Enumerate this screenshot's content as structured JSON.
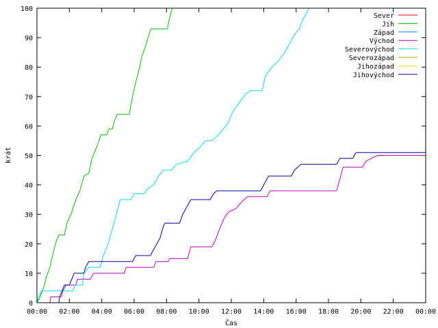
{
  "chart_data": {
    "type": "line",
    "title": "",
    "xlabel": "Čas",
    "ylabel": "krát",
    "xlim": [
      0,
      24
    ],
    "ylim": [
      0,
      100
    ],
    "x_ticks": [
      0,
      2,
      4,
      6,
      8,
      10,
      12,
      14,
      16,
      18,
      20,
      22,
      24
    ],
    "x_tick_labels": [
      "00:00",
      "02:00",
      "04:00",
      "06:00",
      "08:00",
      "10:00",
      "12:00",
      "14:00",
      "16:00",
      "18:00",
      "20:00",
      "22:00",
      "00:00"
    ],
    "y_ticks": [
      0,
      10,
      20,
      30,
      40,
      50,
      60,
      70,
      80,
      90,
      100
    ],
    "y_tick_labels": [
      "0",
      "10",
      "20",
      "30",
      "40",
      "50",
      "60",
      "70",
      "80",
      "90",
      "100"
    ],
    "grid": false,
    "legend_position": "top-right",
    "series": [
      {
        "name": "Sever",
        "color": "#ff0000",
        "points": []
      },
      {
        "name": "Jih",
        "color": "#00c000",
        "points": [
          [
            0,
            0
          ],
          [
            0.2,
            2
          ],
          [
            0.4,
            5
          ],
          [
            0.6,
            9
          ],
          [
            0.8,
            12
          ],
          [
            1,
            17
          ],
          [
            1.2,
            21
          ],
          [
            1.35,
            23
          ],
          [
            1.7,
            23
          ],
          [
            1.85,
            27
          ],
          [
            2.1,
            30
          ],
          [
            2.4,
            35
          ],
          [
            2.65,
            38
          ],
          [
            2.9,
            43
          ],
          [
            3.2,
            44
          ],
          [
            3.4,
            49
          ],
          [
            3.7,
            53
          ],
          [
            3.95,
            57
          ],
          [
            4.3,
            57
          ],
          [
            4.45,
            59
          ],
          [
            4.65,
            59
          ],
          [
            4.8,
            62
          ],
          [
            4.95,
            64
          ],
          [
            5.7,
            64
          ],
          [
            5.9,
            70
          ],
          [
            6.1,
            75
          ],
          [
            6.3,
            79
          ],
          [
            6.5,
            84
          ],
          [
            6.7,
            87
          ],
          [
            6.9,
            91
          ],
          [
            7.05,
            93
          ],
          [
            8.05,
            93
          ],
          [
            8.2,
            97
          ],
          [
            8.35,
            100
          ]
        ]
      },
      {
        "name": "Západ",
        "color": "#0080ff",
        "points": []
      },
      {
        "name": "Východ",
        "color": "#c000c0",
        "points": [
          [
            0.8,
            0
          ],
          [
            0.85,
            2
          ],
          [
            1.5,
            2
          ],
          [
            1.6,
            4
          ],
          [
            1.8,
            6
          ],
          [
            2.4,
            6
          ],
          [
            2.5,
            8
          ],
          [
            3.3,
            8
          ],
          [
            3.5,
            10
          ],
          [
            5.4,
            10
          ],
          [
            5.5,
            12
          ],
          [
            7.2,
            12
          ],
          [
            7.35,
            14
          ],
          [
            8.1,
            14
          ],
          [
            8.2,
            15
          ],
          [
            9.3,
            15
          ],
          [
            9.5,
            19
          ],
          [
            10.8,
            19
          ],
          [
            11,
            21
          ],
          [
            11.2,
            24
          ],
          [
            11.5,
            28
          ],
          [
            11.7,
            30
          ],
          [
            11.9,
            31
          ],
          [
            12.3,
            32
          ],
          [
            12.6,
            34
          ],
          [
            13,
            36
          ],
          [
            14.2,
            36
          ],
          [
            14.4,
            38
          ],
          [
            18.5,
            38
          ],
          [
            18.7,
            42
          ],
          [
            18.9,
            46
          ],
          [
            20.1,
            46
          ],
          [
            20.3,
            48
          ],
          [
            21,
            50
          ],
          [
            24,
            50
          ]
        ]
      },
      {
        "name": "Severovýchod",
        "color": "#00e0e0",
        "points": [
          [
            0,
            0
          ],
          [
            0.1,
            2
          ],
          [
            0.3,
            4
          ],
          [
            2.2,
            4
          ],
          [
            2.35,
            6
          ],
          [
            2.8,
            6
          ],
          [
            2.9,
            10
          ],
          [
            3.2,
            12
          ],
          [
            3.9,
            12
          ],
          [
            4.1,
            16
          ],
          [
            4.4,
            20
          ],
          [
            4.6,
            24
          ],
          [
            4.8,
            28
          ],
          [
            5,
            32
          ],
          [
            5.15,
            35
          ],
          [
            5.8,
            35
          ],
          [
            6,
            37
          ],
          [
            6.6,
            37
          ],
          [
            6.9,
            39
          ],
          [
            7.2,
            40
          ],
          [
            7.5,
            43
          ],
          [
            7.8,
            45
          ],
          [
            8.3,
            45
          ],
          [
            8.6,
            47
          ],
          [
            9.3,
            48
          ],
          [
            9.7,
            51
          ],
          [
            10.1,
            53
          ],
          [
            10.4,
            55
          ],
          [
            10.8,
            55
          ],
          [
            11.2,
            57
          ],
          [
            11.5,
            59
          ],
          [
            11.8,
            61
          ],
          [
            12.1,
            65
          ],
          [
            12.5,
            68
          ],
          [
            12.9,
            71
          ],
          [
            13.2,
            72
          ],
          [
            13.9,
            72
          ],
          [
            14.1,
            77
          ],
          [
            14.5,
            80
          ],
          [
            14.9,
            82
          ],
          [
            15.3,
            85
          ],
          [
            15.6,
            88
          ],
          [
            15.9,
            91
          ],
          [
            16.2,
            93
          ],
          [
            16.4,
            96
          ],
          [
            16.6,
            98
          ],
          [
            16.8,
            100
          ]
        ]
      },
      {
        "name": "Severozápad",
        "color": "#c0a000",
        "points": []
      },
      {
        "name": "Jihozápad",
        "color": "#ffd700",
        "points": []
      },
      {
        "name": "Jihovýchod",
        "color": "#0000a0",
        "points": [
          [
            1.35,
            0
          ],
          [
            1.4,
            2
          ],
          [
            1.55,
            4
          ],
          [
            1.7,
            6
          ],
          [
            2,
            6
          ],
          [
            2.15,
            8
          ],
          [
            2.3,
            10
          ],
          [
            2.9,
            10
          ],
          [
            3,
            12
          ],
          [
            3.2,
            14
          ],
          [
            5.9,
            14
          ],
          [
            6.1,
            16
          ],
          [
            7,
            16
          ],
          [
            7.2,
            18
          ],
          [
            7.6,
            22
          ],
          [
            7.8,
            26
          ],
          [
            7.9,
            27
          ],
          [
            8.8,
            27
          ],
          [
            9,
            30
          ],
          [
            9.2,
            32
          ],
          [
            9.5,
            35
          ],
          [
            10.7,
            35
          ],
          [
            10.9,
            37
          ],
          [
            11.1,
            38
          ],
          [
            13.8,
            38
          ],
          [
            14,
            40
          ],
          [
            14.3,
            43
          ],
          [
            15.7,
            43
          ],
          [
            15.9,
            45
          ],
          [
            16.3,
            47
          ],
          [
            18.5,
            47
          ],
          [
            18.7,
            49
          ],
          [
            19.5,
            49
          ],
          [
            19.7,
            51
          ],
          [
            24,
            51
          ]
        ]
      }
    ]
  }
}
